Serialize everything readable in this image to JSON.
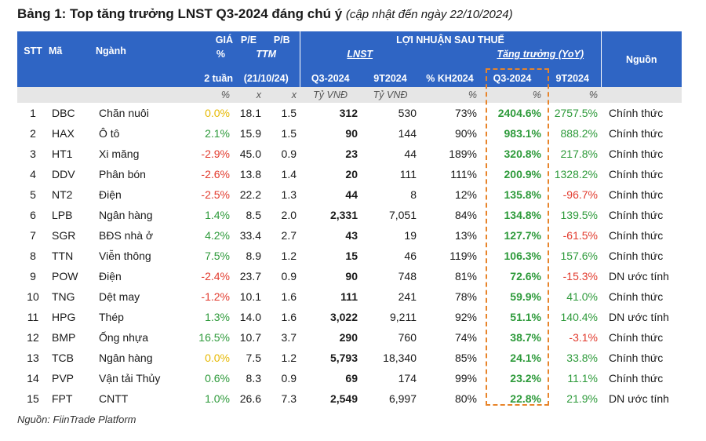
{
  "title": {
    "main": "Bảng 1: Top tăng trưởng LNST Q3-2024 đáng chú ý",
    "subtitle": "(cập nhật đến ngày 22/10/2024)"
  },
  "headers": {
    "stt": "STT",
    "ma": "Mã",
    "nganh": "Ngành",
    "gia": "GIÁ",
    "gia_pct": "%",
    "gia_2tuan": "2 tuần",
    "pe": "P/E",
    "ttm": "TTM",
    "ttm_date": "(21/10/24)",
    "pb": "P/B",
    "lnst_group": "LỢI NHUẬN SAU THUẾ",
    "lnst": "LNST",
    "tang_truong": "Tăng trưởng (YoY)",
    "q3_2024": "Q3-2024",
    "t9_2024": "9T2024",
    "pct_kh": "% KH2024",
    "gr_q3": "Q3-2024",
    "gr_9t": "9T2024",
    "nguon": "Nguồn"
  },
  "units": [
    "%",
    "x",
    "x",
    "Tỷ VNĐ",
    "Tỷ VNĐ",
    "%",
    "%",
    "%"
  ],
  "rows": [
    {
      "stt": "1",
      "ma": "DBC",
      "nganh": "Chăn nuôi",
      "gia": "0.0%",
      "pe": "18.1",
      "pb": "1.5",
      "q3": "312",
      "t9": "530",
      "kh": "73%",
      "gq3": "2404.6%",
      "g9t": "2757.5%",
      "nguon": "Chính thức"
    },
    {
      "stt": "2",
      "ma": "HAX",
      "nganh": "Ô tô",
      "gia": "2.1%",
      "pe": "15.9",
      "pb": "1.5",
      "q3": "90",
      "t9": "144",
      "kh": "90%",
      "gq3": "983.1%",
      "g9t": "888.2%",
      "nguon": "Chính thức"
    },
    {
      "stt": "3",
      "ma": "HT1",
      "nganh": "Xi măng",
      "gia": "-2.9%",
      "pe": "45.0",
      "pb": "0.9",
      "q3": "23",
      "t9": "44",
      "kh": "189%",
      "gq3": "320.8%",
      "g9t": "217.8%",
      "nguon": "Chính thức"
    },
    {
      "stt": "4",
      "ma": "DDV",
      "nganh": "Phân bón",
      "gia": "-2.6%",
      "pe": "13.8",
      "pb": "1.4",
      "q3": "20",
      "t9": "111",
      "kh": "111%",
      "gq3": "200.9%",
      "g9t": "1328.2%",
      "nguon": "Chính thức"
    },
    {
      "stt": "5",
      "ma": "NT2",
      "nganh": "Điện",
      "gia": "-2.5%",
      "pe": "22.2",
      "pb": "1.3",
      "q3": "44",
      "t9": "8",
      "kh": "12%",
      "gq3": "135.8%",
      "g9t": "-96.7%",
      "nguon": "Chính thức"
    },
    {
      "stt": "6",
      "ma": "LPB",
      "nganh": "Ngân hàng",
      "gia": "1.4%",
      "pe": "8.5",
      "pb": "2.0",
      "q3": "2,331",
      "t9": "7,051",
      "kh": "84%",
      "gq3": "134.8%",
      "g9t": "139.5%",
      "nguon": "Chính thức"
    },
    {
      "stt": "7",
      "ma": "SGR",
      "nganh": "BĐS nhà ở",
      "gia": "4.2%",
      "pe": "33.4",
      "pb": "2.7",
      "q3": "43",
      "t9": "19",
      "kh": "13%",
      "gq3": "127.7%",
      "g9t": "-61.5%",
      "nguon": "Chính thức"
    },
    {
      "stt": "8",
      "ma": "TTN",
      "nganh": "Viễn thông",
      "gia": "7.5%",
      "pe": "8.9",
      "pb": "1.2",
      "q3": "15",
      "t9": "46",
      "kh": "119%",
      "gq3": "106.3%",
      "g9t": "157.6%",
      "nguon": "Chính thức"
    },
    {
      "stt": "9",
      "ma": "POW",
      "nganh": "Điện",
      "gia": "-2.4%",
      "pe": "23.7",
      "pb": "0.9",
      "q3": "90",
      "t9": "748",
      "kh": "81%",
      "gq3": "72.6%",
      "g9t": "-15.3%",
      "nguon": "DN ước tính"
    },
    {
      "stt": "10",
      "ma": "TNG",
      "nganh": "Dệt may",
      "gia": "-1.2%",
      "pe": "10.1",
      "pb": "1.6",
      "q3": "111",
      "t9": "241",
      "kh": "78%",
      "gq3": "59.9%",
      "g9t": "41.0%",
      "nguon": "Chính thức"
    },
    {
      "stt": "11",
      "ma": "HPG",
      "nganh": "Thép",
      "gia": "1.3%",
      "pe": "14.0",
      "pb": "1.6",
      "q3": "3,022",
      "t9": "9,211",
      "kh": "92%",
      "gq3": "51.1%",
      "g9t": "140.4%",
      "nguon": "DN ước tính"
    },
    {
      "stt": "12",
      "ma": "BMP",
      "nganh": "Ống nhựa",
      "gia": "16.5%",
      "pe": "10.7",
      "pb": "3.7",
      "q3": "290",
      "t9": "760",
      "kh": "74%",
      "gq3": "38.7%",
      "g9t": "-3.1%",
      "nguon": "Chính thức"
    },
    {
      "stt": "13",
      "ma": "TCB",
      "nganh": "Ngân hàng",
      "gia": "0.0%",
      "pe": "7.5",
      "pb": "1.2",
      "q3": "5,793",
      "t9": "18,340",
      "kh": "85%",
      "gq3": "24.1%",
      "g9t": "33.8%",
      "nguon": "Chính thức"
    },
    {
      "stt": "14",
      "ma": "PVP",
      "nganh": "Vận tải Thủy",
      "gia": "0.6%",
      "pe": "8.3",
      "pb": "0.9",
      "q3": "69",
      "t9": "174",
      "kh": "99%",
      "gq3": "23.2%",
      "g9t": "11.1%",
      "nguon": "Chính thức"
    },
    {
      "stt": "15",
      "ma": "FPT",
      "nganh": "CNTT",
      "gia": "1.0%",
      "pe": "26.6",
      "pb": "7.3",
      "q3": "2,549",
      "t9": "6,997",
      "kh": "80%",
      "gq3": "22.8%",
      "g9t": "21.9%",
      "nguon": "DN ước tính"
    }
  ],
  "colors": {
    "header_bg": "#2f65c4",
    "positive": "#2d9a3a",
    "negative": "#e23b2e",
    "zero": "#e6b800",
    "highlight_border": "#e8842a"
  },
  "source": "Nguồn: FiinTrade Platform"
}
